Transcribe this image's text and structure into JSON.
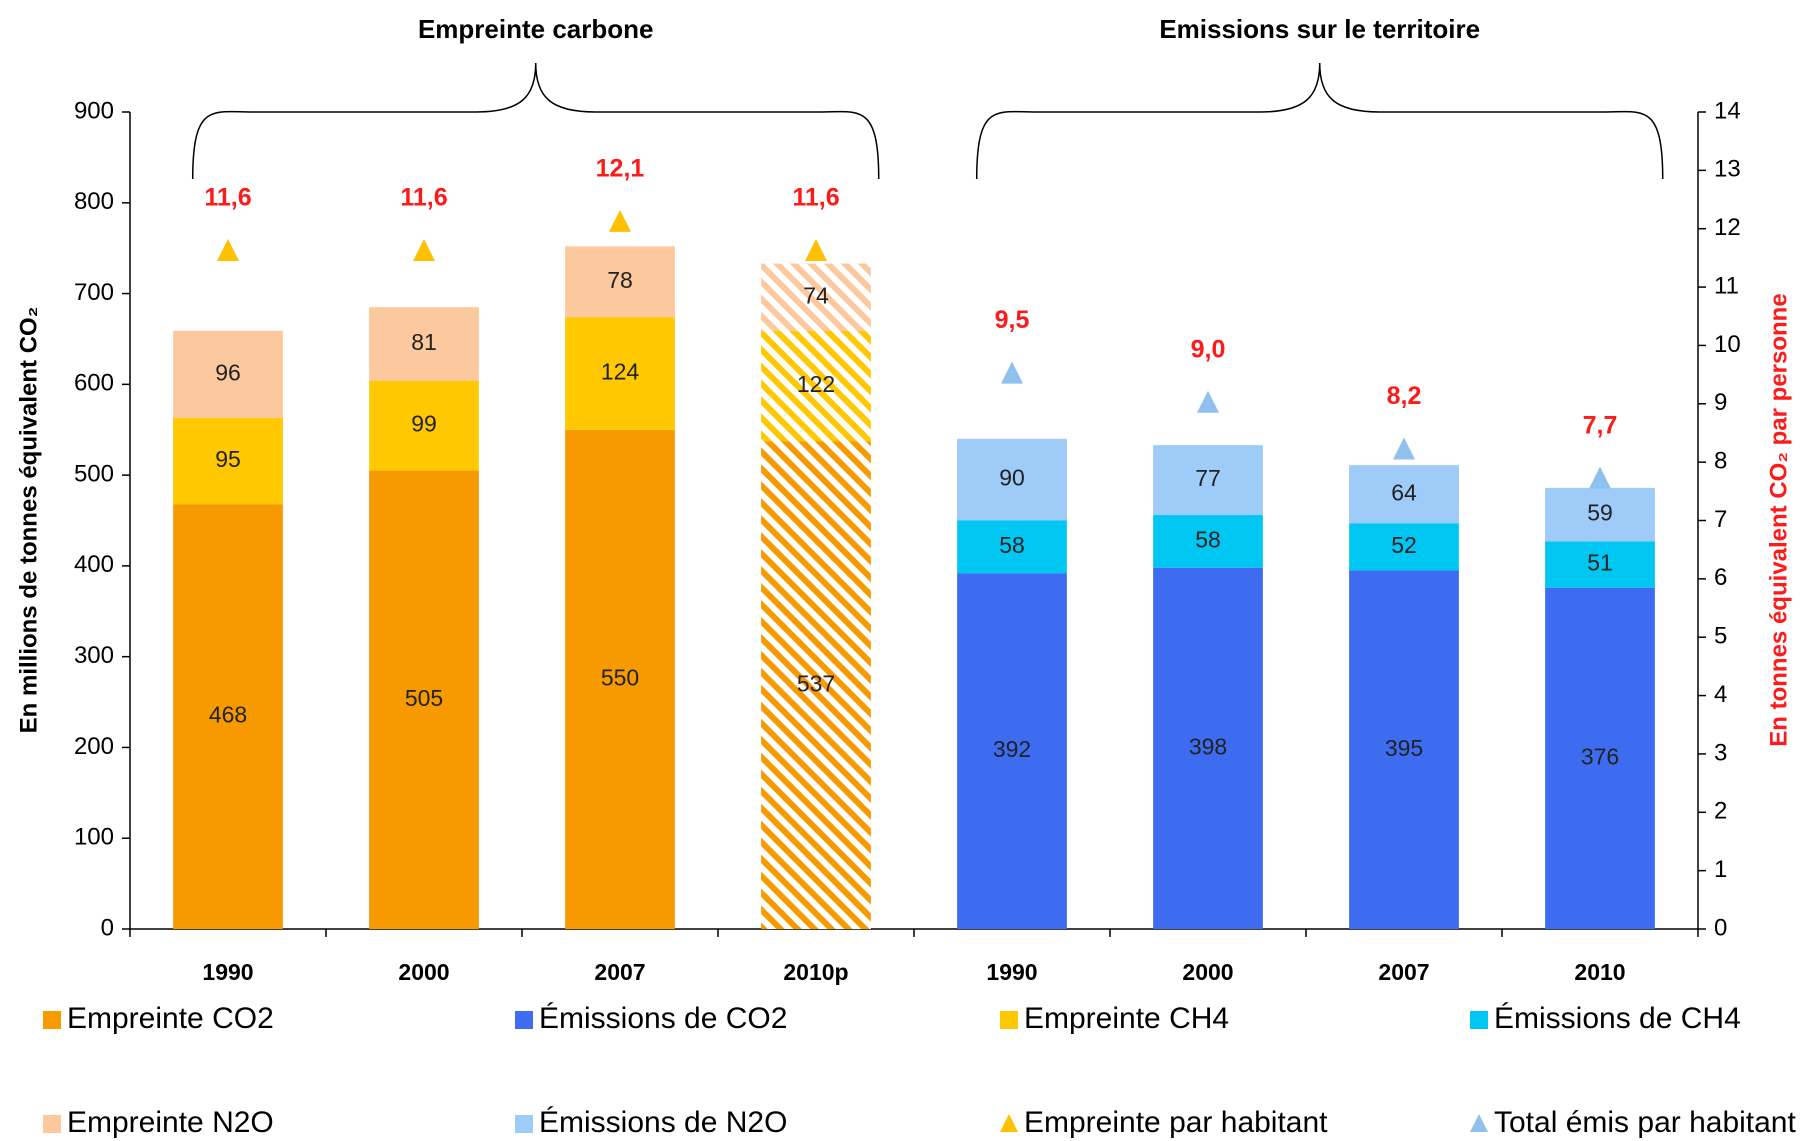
{
  "chart_data": {
    "type": "stacked-bar",
    "groups": [
      {
        "label": "Empreinte carbone"
      },
      {
        "label": "Emissions sur le territoire"
      }
    ],
    "ylabel": "En millions de tonnes équivalent CO₂",
    "y2label": "En tonnes équivalent CO₂ par personne",
    "categories": [
      "1990",
      "2000",
      "2007",
      "2010p",
      "1990",
      "2000",
      "2007",
      "2010"
    ],
    "hatched_category": "2010p",
    "ylim": [
      0,
      900
    ],
    "yticks": [
      0,
      100,
      200,
      300,
      400,
      500,
      600,
      700,
      800,
      900
    ],
    "y2lim": [
      0,
      14
    ],
    "y2ticks": [
      0,
      1,
      2,
      3,
      4,
      5,
      6,
      7,
      8,
      9,
      10,
      11,
      12,
      13,
      14
    ],
    "series": [
      {
        "name": "Empreinte CO2",
        "color": "#f79a00",
        "values": [
          468,
          505,
          550,
          537,
          null,
          null,
          null,
          null
        ]
      },
      {
        "name": "Émissions de CO2",
        "color": "#3d6cf0",
        "values": [
          null,
          null,
          null,
          null,
          392,
          398,
          395,
          376
        ]
      },
      {
        "name": "Empreinte CH4",
        "color": "#ffc800",
        "values": [
          95,
          99,
          124,
          122,
          null,
          null,
          null,
          null
        ]
      },
      {
        "name": "Émissions de CH4",
        "color": "#00c6f2",
        "values": [
          null,
          null,
          null,
          null,
          58,
          58,
          52,
          51
        ]
      },
      {
        "name": "Empreinte N2O",
        "color": "#fcc89e",
        "values": [
          96,
          81,
          78,
          74,
          null,
          null,
          null,
          null
        ]
      },
      {
        "name": "Émissions de N2O",
        "color": "#9ecbf8",
        "values": [
          null,
          null,
          null,
          null,
          90,
          77,
          64,
          59
        ]
      },
      {
        "name": "Empreinte par habitant",
        "color": "#ffc000",
        "marker": "triangle",
        "axis": "y2",
        "values": [
          11.6,
          11.6,
          12.1,
          11.6,
          null,
          null,
          null,
          null
        ],
        "value_labels": [
          "11,6",
          "11,6",
          "12,1",
          "11,6",
          null,
          null,
          null,
          null
        ]
      },
      {
        "name": "Total émis par habitant",
        "color": "#8fc0ee",
        "marker": "triangle",
        "axis": "y2",
        "values": [
          null,
          null,
          null,
          null,
          9.5,
          9.0,
          8.2,
          7.7
        ],
        "value_labels": [
          null,
          null,
          null,
          null,
          "9,5",
          "9,0",
          "8,2",
          "7,7"
        ]
      }
    ]
  }
}
